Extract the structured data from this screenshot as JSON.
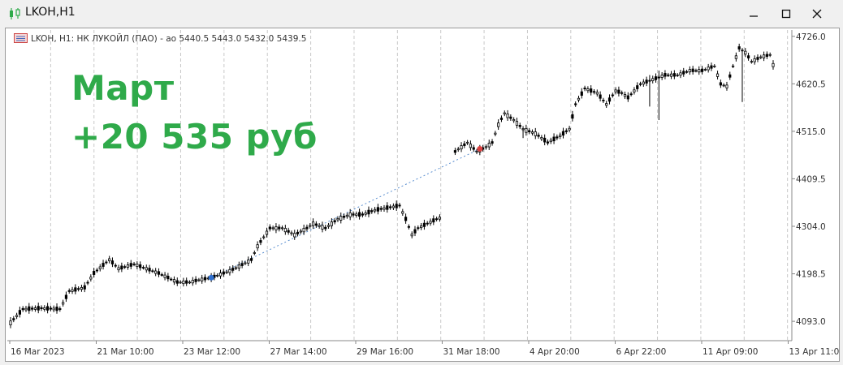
{
  "window": {
    "title": "LKOH,H1",
    "icon": "candlestick-chart-icon",
    "controls": [
      "minimize-icon",
      "maximize-icon",
      "close-icon"
    ]
  },
  "info_line": {
    "text": "LKOH, H1:  НК ЛУКОЙЛ (ПАО) - ао  5440.5 5443.0 5432.0 5439.5"
  },
  "overlay": {
    "line1": "Март",
    "line2": "+20 535 руб"
  },
  "colors": {
    "overlay_text": "#2faa4a",
    "candles": "#000000",
    "grid": "#c8c8c8",
    "trade_line": "#5b8fd0",
    "entry_marker": "#2f6fcf",
    "exit_marker": "#d94040"
  },
  "chart_data": {
    "type": "line",
    "symbol": "LKOH",
    "timeframe": "H1",
    "y_ticks": [
      "4726.0",
      "4620.5",
      "4515.0",
      "4409.5",
      "4304.0",
      "4198.5",
      "4093.0"
    ],
    "x_ticks": [
      "16 Mar 2023",
      "21 Mar 10:00",
      "23 Mar 12:00",
      "27 Mar 14:00",
      "29 Mar 16:00",
      "31 Mar 18:00",
      "4 Apr 20:00",
      "6 Apr 22:00",
      "11 Apr 09:00",
      "13 Apr 11:00"
    ],
    "ylim": [
      4050,
      4740
    ],
    "grid": "vertical-dashed",
    "series": [
      {
        "points": [
          {
            "x": 0,
            "y": 4090
          },
          {
            "x": 4,
            "y": 4120
          },
          {
            "x": 10,
            "y": 4122
          },
          {
            "x": 16,
            "y": 4120
          },
          {
            "x": 19,
            "y": 4160
          },
          {
            "x": 24,
            "y": 4168
          },
          {
            "x": 27,
            "y": 4200
          },
          {
            "x": 32,
            "y": 4230
          },
          {
            "x": 35,
            "y": 4210
          },
          {
            "x": 40,
            "y": 4220
          },
          {
            "x": 44,
            "y": 4210
          },
          {
            "x": 48,
            "y": 4200
          },
          {
            "x": 54,
            "y": 4180
          },
          {
            "x": 58,
            "y": 4180
          },
          {
            "x": 61,
            "y": 4185
          },
          {
            "x": 65,
            "y": 4190
          },
          {
            "x": 71,
            "y": 4205
          },
          {
            "x": 74,
            "y": 4215
          },
          {
            "x": 78,
            "y": 4230
          },
          {
            "x": 80,
            "y": 4260
          },
          {
            "x": 84,
            "y": 4300
          },
          {
            "x": 88,
            "y": 4300
          },
          {
            "x": 92,
            "y": 4285
          },
          {
            "x": 96,
            "y": 4300
          },
          {
            "x": 98,
            "y": 4310
          },
          {
            "x": 102,
            "y": 4300
          },
          {
            "x": 106,
            "y": 4320
          },
          {
            "x": 110,
            "y": 4330
          },
          {
            "x": 114,
            "y": 4330
          },
          {
            "x": 118,
            "y": 4340
          },
          {
            "x": 122,
            "y": 4345
          },
          {
            "x": 126,
            "y": 4350
          },
          {
            "x": 128,
            "y": 4320
          },
          {
            "x": 130,
            "y": 4285
          },
          {
            "x": 132,
            "y": 4300
          },
          {
            "x": 135,
            "y": 4310
          },
          {
            "x": 138,
            "y": 4320
          },
          {
            "x": 140,
            "y": 4325
          }
        ]
      },
      {
        "points": [
          {
            "x": 144,
            "y": 4470
          },
          {
            "x": 148,
            "y": 4490
          },
          {
            "x": 151,
            "y": 4470
          },
          {
            "x": 154,
            "y": 4480
          },
          {
            "x": 156,
            "y": 4490
          },
          {
            "x": 158,
            "y": 4530
          },
          {
            "x": 160,
            "y": 4555
          },
          {
            "x": 163,
            "y": 4540
          },
          {
            "x": 166,
            "y": 4520
          },
          {
            "x": 170,
            "y": 4510
          },
          {
            "x": 174,
            "y": 4490
          },
          {
            "x": 178,
            "y": 4505
          },
          {
            "x": 181,
            "y": 4520
          },
          {
            "x": 183,
            "y": 4575
          },
          {
            "x": 186,
            "y": 4610
          },
          {
            "x": 190,
            "y": 4600
          },
          {
            "x": 193,
            "y": 4575
          },
          {
            "x": 196,
            "y": 4605
          },
          {
            "x": 198,
            "y": 4600
          },
          {
            "x": 200,
            "y": 4590
          },
          {
            "x": 204,
            "y": 4620
          },
          {
            "x": 208,
            "y": 4630
          },
          {
            "x": 212,
            "y": 4640
          },
          {
            "x": 216,
            "y": 4640
          },
          {
            "x": 220,
            "y": 4650
          },
          {
            "x": 224,
            "y": 4650
          },
          {
            "x": 228,
            "y": 4660
          },
          {
            "x": 230,
            "y": 4620
          },
          {
            "x": 232,
            "y": 4615
          },
          {
            "x": 234,
            "y": 4660
          },
          {
            "x": 236,
            "y": 4700
          },
          {
            "x": 238,
            "y": 4690
          },
          {
            "x": 240,
            "y": 4670
          },
          {
            "x": 243,
            "y": 4680
          },
          {
            "x": 246,
            "y": 4685
          },
          {
            "x": 248,
            "y": 4640
          }
        ]
      }
    ],
    "trade": {
      "entry": {
        "x": 65,
        "y": 4190
      },
      "exit": {
        "x": 152,
        "y": 4476
      }
    }
  }
}
